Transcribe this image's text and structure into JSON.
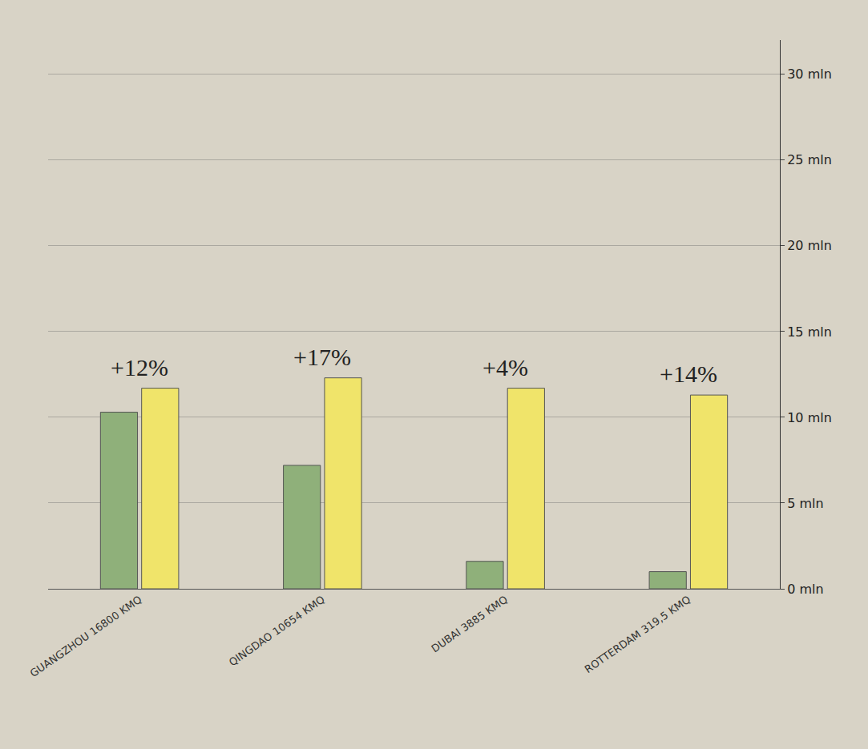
{
  "chart_data": {
    "type": "bar",
    "categories": [
      "GUANGZHOU 16800 KMQ",
      "QINGDAO 10654 KMQ",
      "DUBAI 3885 KMQ",
      "ROTTERDAM 319,5 KMQ"
    ],
    "series": [
      {
        "color": "#8fb07a",
        "values": [
          10.3,
          7.2,
          1.6,
          1.0
        ]
      },
      {
        "color": "#f0e46a",
        "values": [
          11.7,
          12.3,
          11.7,
          11.3
        ]
      }
    ],
    "ylim": [
      0,
      32
    ],
    "yticks": [
      {
        "value": 0,
        "label": "0 mln"
      },
      {
        "value": 5,
        "label": "5 mln"
      },
      {
        "value": 10,
        "label": "10 mln"
      },
      {
        "value": 15,
        "label": "15 mln"
      },
      {
        "value": 20,
        "label": "20 mln"
      },
      {
        "value": 25,
        "label": "25 mln"
      },
      {
        "value": 30,
        "label": "30 mln"
      }
    ],
    "annotations": [
      {
        "category": "GUANGZHOU 16800 KMQ",
        "text": "+12%"
      },
      {
        "category": "QINGDAO 10654 KMQ",
        "text": "+17%"
      },
      {
        "category": "DUBAI 3885 KMQ",
        "text": "+4%"
      },
      {
        "category": "ROTTERDAM 319,5 KMQ",
        "text": "+14%"
      }
    ],
    "grid": true
  }
}
